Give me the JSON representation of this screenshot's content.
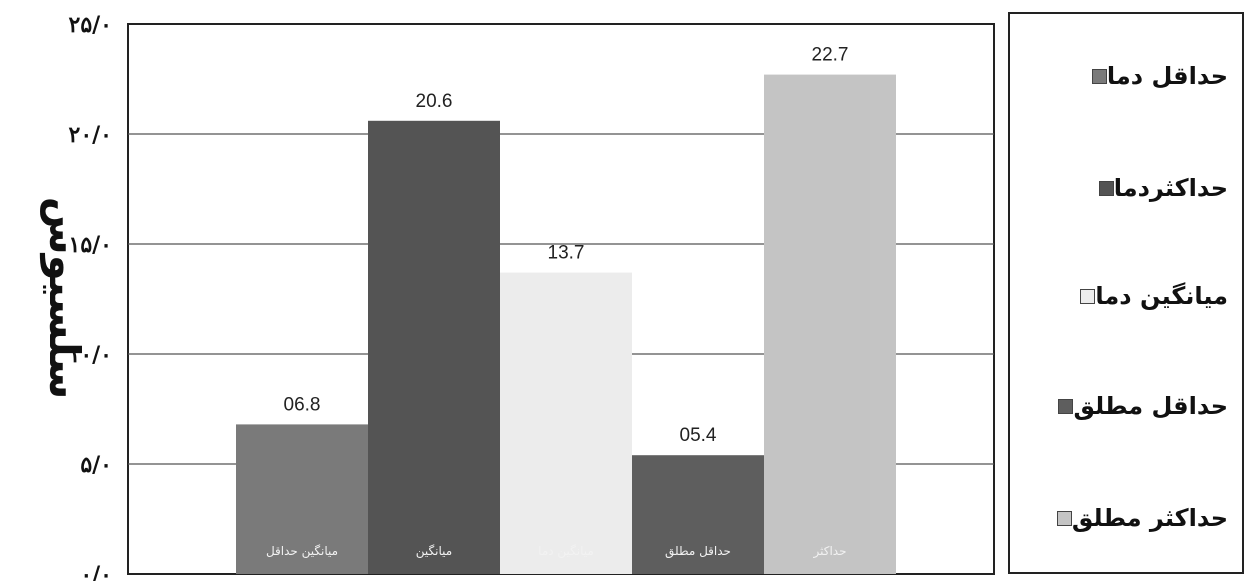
{
  "chart_data": {
    "type": "bar",
    "ylabel": "سلسیوس",
    "ylim": [
      0,
      25
    ],
    "ytick_values": [
      0,
      5,
      10,
      15,
      20,
      25
    ],
    "ytick_labels": [
      "۰/۰",
      "۵/۰",
      "۱۰/۰",
      "۱۵/۰",
      "۲۰/۰",
      "۲۵/۰"
    ],
    "grid": true,
    "legend_position": "right",
    "categories": [
      "میانگین حداقل",
      "میانگین",
      "میانگین دما",
      "حداقل مطلق",
      "حداکثر"
    ],
    "values": [
      6.8,
      20.6,
      13.7,
      5.4,
      22.7
    ],
    "value_labels": [
      "06.8",
      "20.6",
      "13.7",
      "05.4",
      "22.7"
    ],
    "series": [
      {
        "name": "حداقل دما",
        "value": 6.8,
        "color": "#7a7a7a"
      },
      {
        "name": "حداکثردما",
        "value": 20.6,
        "color": "#545454"
      },
      {
        "name": "میانگین دما",
        "value": 13.7,
        "color": "#ececec"
      },
      {
        "name": "حداقل مطلق",
        "value": 5.4,
        "color": "#5e5e5e"
      },
      {
        "name": "حداکثر مطلق",
        "value": 22.7,
        "color": "#c4c4c4"
      }
    ]
  }
}
